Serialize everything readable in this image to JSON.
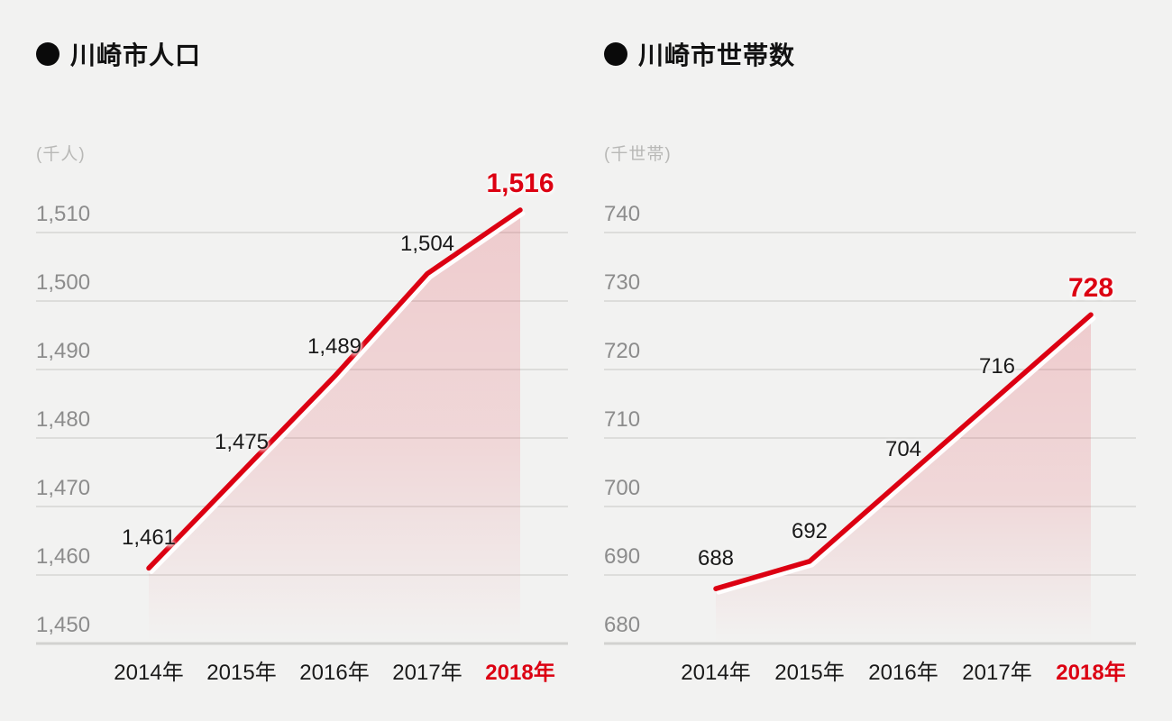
{
  "page": {
    "background": "#f2f2f1",
    "accent_red": "#dc0012",
    "grid_color": "#dddddb",
    "grid_bottom_color": "#d2d2d0",
    "tick_color": "#8c8c8c",
    "label_color": "#1a1a1a",
    "unit_color": "#b8b8b6"
  },
  "chart_data": [
    {
      "type": "area",
      "title": "川崎市人口",
      "unit_label": "(千人)",
      "categories": [
        "2014年",
        "2015年",
        "2016年",
        "2017年",
        "2018年"
      ],
      "values": [
        1461,
        1475,
        1489,
        1504,
        1516
      ],
      "value_labels": [
        "1,461",
        "1,475",
        "1,489",
        "1,504",
        "1,516"
      ],
      "highlight_index": 4,
      "highlight_category": "2018年",
      "xlabel": "",
      "ylabel": "(千人)",
      "ylim": [
        1450,
        1510
      ],
      "ytick_step": 10,
      "ytick_labels": [
        "1,450",
        "1,460",
        "1,470",
        "1,480",
        "1,490",
        "1,500",
        "1,510"
      ],
      "grid": true,
      "legend": "none",
      "line_color": "#dc0012"
    },
    {
      "type": "area",
      "title": "川崎市世帯数",
      "unit_label": "(千世帯)",
      "categories": [
        "2014年",
        "2015年",
        "2016年",
        "2017年",
        "2018年"
      ],
      "values": [
        688,
        692,
        704,
        716,
        728
      ],
      "value_labels": [
        "688",
        "692",
        "704",
        "716",
        "728"
      ],
      "highlight_index": 4,
      "highlight_category": "2018年",
      "xlabel": "",
      "ylabel": "(千世帯)",
      "ylim": [
        680,
        740
      ],
      "ytick_step": 10,
      "ytick_labels": [
        "680",
        "690",
        "700",
        "710",
        "720",
        "730",
        "740"
      ],
      "grid": true,
      "legend": "none",
      "line_color": "#dc0012"
    }
  ]
}
